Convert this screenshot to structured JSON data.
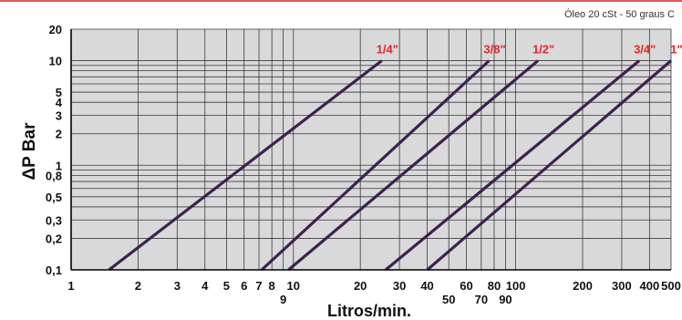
{
  "note": "Óleo 20 cSt - 50 graus C",
  "chart_data": {
    "type": "line",
    "x_scale": "log",
    "y_scale": "log",
    "xlim": [
      1,
      500
    ],
    "ylim": [
      0.1,
      20
    ],
    "xlabel": "Litros/min.",
    "ylabel": "ΔP Bar",
    "x_ticks": [
      {
        "value": 1,
        "label": "1",
        "row": 0
      },
      {
        "value": 2,
        "label": "2",
        "row": 0
      },
      {
        "value": 3,
        "label": "3",
        "row": 0
      },
      {
        "value": 4,
        "label": "4",
        "row": 0
      },
      {
        "value": 5,
        "label": "5",
        "row": 0
      },
      {
        "value": 6,
        "label": "6",
        "row": 0
      },
      {
        "value": 7,
        "label": "7",
        "row": 0
      },
      {
        "value": 8,
        "label": "8",
        "row": 0
      },
      {
        "value": 9,
        "label": "9",
        "row": 1
      },
      {
        "value": 10,
        "label": "10",
        "row": 0
      },
      {
        "value": 20,
        "label": "20",
        "row": 0
      },
      {
        "value": 30,
        "label": "30",
        "row": 0
      },
      {
        "value": 40,
        "label": "40",
        "row": 0
      },
      {
        "value": 50,
        "label": "50",
        "row": 1
      },
      {
        "value": 60,
        "label": "60",
        "row": 0
      },
      {
        "value": 70,
        "label": "70",
        "row": 1
      },
      {
        "value": 80,
        "label": "80",
        "row": 0
      },
      {
        "value": 90,
        "label": "90",
        "row": 1
      },
      {
        "value": 100,
        "label": "100",
        "row": 0
      },
      {
        "value": 200,
        "label": "200",
        "row": 0
      },
      {
        "value": 300,
        "label": "300",
        "row": 0
      },
      {
        "value": 400,
        "label": "400",
        "row": 0
      },
      {
        "value": 500,
        "label": "500",
        "row": 0
      }
    ],
    "y_ticks": [
      {
        "value": 0.1,
        "label": "0,1"
      },
      {
        "value": 0.2,
        "label": "0,2"
      },
      {
        "value": 0.3,
        "label": "0,3"
      },
      {
        "value": 0.5,
        "label": "0,5"
      },
      {
        "value": 0.8,
        "label": "0,8"
      },
      {
        "value": 1,
        "label": "1"
      },
      {
        "value": 2,
        "label": "2"
      },
      {
        "value": 3,
        "label": "3"
      },
      {
        "value": 4,
        "label": "4"
      },
      {
        "value": 5,
        "label": "5"
      },
      {
        "value": 10,
        "label": "10"
      },
      {
        "value": 20,
        "label": "20"
      }
    ],
    "y_grid": [
      0.1,
      0.2,
      0.3,
      0.4,
      0.5,
      0.6,
      0.7,
      0.8,
      0.9,
      1,
      2,
      3,
      4,
      5,
      6,
      7,
      8,
      9,
      10,
      20
    ],
    "x_grid": [
      1,
      2,
      3,
      4,
      5,
      6,
      7,
      8,
      9,
      10,
      20,
      30,
      40,
      50,
      60,
      70,
      80,
      90,
      100,
      200,
      300,
      400,
      500
    ],
    "grid": true,
    "series": [
      {
        "name": "1/4\"",
        "x": [
          1.48,
          25
        ],
        "y": [
          0.1,
          10
        ]
      },
      {
        "name": "3/8\"",
        "x": [
          7.2,
          76
        ],
        "y": [
          0.1,
          10
        ]
      },
      {
        "name": "1/2\"",
        "x": [
          9.5,
          126
        ],
        "y": [
          0.1,
          10
        ]
      },
      {
        "name": "3/4\"",
        "x": [
          26,
          360
        ],
        "y": [
          0.1,
          10
        ]
      },
      {
        "name": "1\"",
        "x": [
          40,
          500
        ],
        "y": [
          0.1,
          10
        ]
      }
    ],
    "colors": {
      "line": "#3d2250",
      "series_label": "#e0262a",
      "plot_bg": "#d9d9d9",
      "grid": "#3a3a3a",
      "axis": "#000000"
    }
  }
}
